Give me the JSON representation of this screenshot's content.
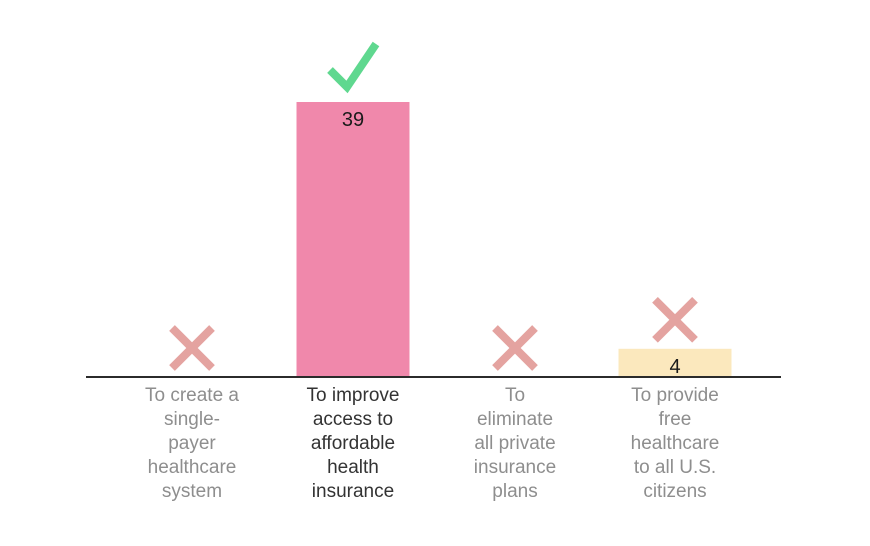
{
  "chart_data": {
    "type": "bar",
    "categories": [
      "To create a single-payer healthcare system",
      "To improve access to affordable health insurance",
      "To eliminate all private insurance plans",
      "To provide free healthcare to all U.S. citizens"
    ],
    "category_lines": [
      [
        "To create a",
        "single-",
        "payer",
        "healthcare",
        "system"
      ],
      [
        "To improve",
        "access to",
        "affordable",
        "health",
        "insurance"
      ],
      [
        "To",
        "eliminate",
        "all private",
        "insurance",
        "plans"
      ],
      [
        "To provide",
        "free",
        "healthcare",
        "to all U.S.",
        "citizens"
      ]
    ],
    "values": [
      0,
      39,
      0,
      4
    ],
    "value_labels": [
      "",
      "39",
      "",
      "4"
    ],
    "marks": [
      "cross-icon",
      "check-icon",
      "cross-icon",
      "cross-icon"
    ],
    "correct_index": 1,
    "title": "",
    "xlabel": "",
    "ylabel": "",
    "ylim": [
      0,
      39
    ],
    "grid": false,
    "legend": "none",
    "colors": {
      "correct_bar": "#f088ab",
      "wrong_bar": "#fbe8bd",
      "check": "#5fd88f",
      "cross": "#e4a3a0",
      "baseline": "#2b2b2b",
      "label": "#8e8e8e",
      "label_correct": "#333333"
    }
  }
}
